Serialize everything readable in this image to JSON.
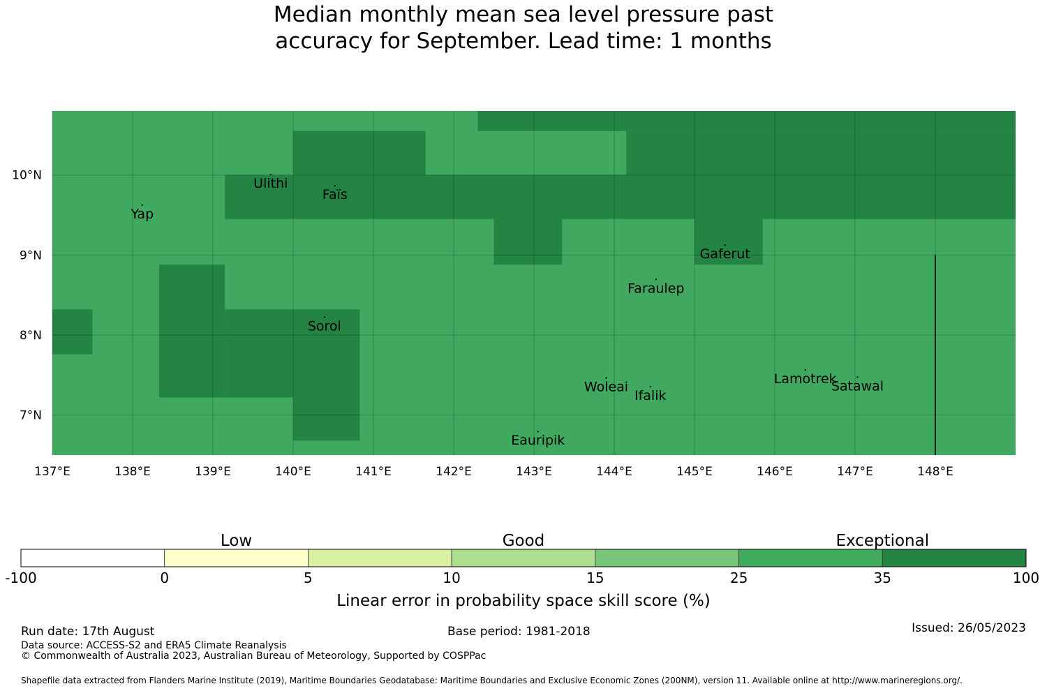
{
  "title": {
    "line1": "Median monthly mean sea level pressure past",
    "line2": "accuracy for September. Lead time: 1 months"
  },
  "map": {
    "lon_range": [
      137.0,
      149.0
    ],
    "lat_range": [
      6.5,
      10.8
    ],
    "background_color": "#41a85f",
    "exceptional_color": "#238443",
    "exceptional_cells": [
      {
        "lon": [
          142.3,
          149.0
        ],
        "lat": [
          10.55,
          10.8
        ]
      },
      {
        "lon": [
          140.0,
          141.65
        ],
        "lat": [
          10.0,
          10.55
        ]
      },
      {
        "lon": [
          144.15,
          149.0
        ],
        "lat": [
          10.0,
          10.55
        ]
      },
      {
        "lon": [
          139.15,
          149.0
        ],
        "lat": [
          9.45,
          10.0
        ]
      },
      {
        "lon": [
          142.5,
          143.35
        ],
        "lat": [
          8.88,
          9.45
        ]
      },
      {
        "lon": [
          145.0,
          145.85
        ],
        "lat": [
          8.88,
          9.45
        ]
      },
      {
        "lon": [
          138.33,
          139.15
        ],
        "lat": [
          7.22,
          8.88
        ]
      },
      {
        "lon": [
          139.15,
          140.83
        ],
        "lat": [
          7.22,
          8.32
        ]
      },
      {
        "lon": [
          140.0,
          140.83
        ],
        "lat": [
          6.68,
          7.22
        ]
      },
      {
        "lon": [
          137.0,
          137.5
        ],
        "lat": [
          7.76,
          8.32
        ]
      }
    ],
    "x_ticks": [
      {
        "value": 137,
        "label": "137°E"
      },
      {
        "value": 138,
        "label": "138°E"
      },
      {
        "value": 139,
        "label": "139°E"
      },
      {
        "value": 140,
        "label": "140°E"
      },
      {
        "value": 141,
        "label": "141°E"
      },
      {
        "value": 142,
        "label": "142°E"
      },
      {
        "value": 143,
        "label": "143°E"
      },
      {
        "value": 144,
        "label": "144°E"
      },
      {
        "value": 145,
        "label": "145°E"
      },
      {
        "value": 146,
        "label": "146°E"
      },
      {
        "value": 147,
        "label": "147°E"
      },
      {
        "value": 148,
        "label": "148°E"
      }
    ],
    "y_ticks": [
      {
        "value": 10,
        "label": "10°N"
      },
      {
        "value": 9,
        "label": "9°N"
      },
      {
        "value": 8,
        "label": "8°N"
      },
      {
        "value": 7,
        "label": "7°N"
      }
    ],
    "places": [
      {
        "name": "Yap",
        "lon": 138.12,
        "lat": 9.52
      },
      {
        "name": "Ulithi",
        "lon": 139.72,
        "lat": 9.9
      },
      {
        "name": "Faïs",
        "lon": 140.52,
        "lat": 9.76
      },
      {
        "name": "Gaferut",
        "lon": 145.38,
        "lat": 9.02
      },
      {
        "name": "Faraulep",
        "lon": 144.52,
        "lat": 8.59
      },
      {
        "name": "Sorol",
        "lon": 140.39,
        "lat": 8.12
      },
      {
        "name": "Woleai",
        "lon": 143.9,
        "lat": 7.36
      },
      {
        "name": "Ifalik",
        "lon": 144.45,
        "lat": 7.25
      },
      {
        "name": "Lamotrek",
        "lon": 146.38,
        "lat": 7.46
      },
      {
        "name": "Satawal",
        "lon": 147.03,
        "lat": 7.37
      },
      {
        "name": "Eauripik",
        "lon": 143.05,
        "lat": 6.69
      }
    ],
    "boundary_line": {
      "lon": 148.0,
      "lat": [
        6.5,
        9.0
      ]
    }
  },
  "colorbar": {
    "categories": [
      {
        "label": "Low",
        "center_value": 2.5
      },
      {
        "label": "Good",
        "center_value": 12.5
      },
      {
        "label": "Exceptional",
        "center_value": 35
      }
    ],
    "bins": [
      {
        "from": "-100",
        "to": "0",
        "color": "#ffffff"
      },
      {
        "from": "0",
        "to": "5",
        "color": "#ffffcc"
      },
      {
        "from": "5",
        "to": "10",
        "color": "#d9f0a3"
      },
      {
        "from": "10",
        "to": "15",
        "color": "#addd8e"
      },
      {
        "from": "15",
        "to": "25",
        "color": "#78c679"
      },
      {
        "from": "25",
        "to": "35",
        "color": "#41ab5d"
      },
      {
        "from": "35",
        "to": "100",
        "color": "#238443"
      }
    ],
    "tick_labels": [
      "-100",
      "0",
      "5",
      "10",
      "15",
      "25",
      "35",
      "100"
    ],
    "title": "Linear error in probability space skill score (%)"
  },
  "footer": {
    "run_date": "Run date: 17th August",
    "base_period": "Base period: 1981-2018",
    "issued": "Issued: 26/05/2023",
    "data_source": "Data source: ACCESS-S2 and ERA5 Climate Reanalysis",
    "copyright": "© Commonwealth of Australia 2023, Australian Bureau of Meteorology, Supported by COSPPac",
    "shapefile": "Shapefile data extracted from Flanders Marine Institute (2019), Maritime Boundaries Geodatabase: Maritime Boundaries and Exclusive Economic Zones (200NM), version 11. Available online at http://www.marineregions.org/."
  }
}
